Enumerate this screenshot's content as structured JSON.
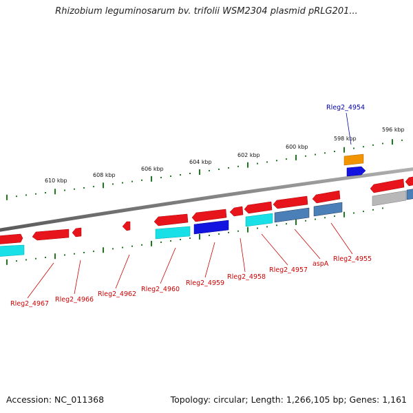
{
  "title": "Rhizobium leguminosarum bv. trifolii WSM2304 plasmid pRLG201...",
  "footer": {
    "accession": "Accession: NC_011368",
    "topology": "Topology: circular; Length: 1,266,105 bp; Genes: 1,161"
  },
  "colors": {
    "backbone": "#7f7f7f",
    "tick": "#1a7a1a",
    "label_red": "#cc0000",
    "label_blue": "#0000aa",
    "red": "#e8141b",
    "cyan": "#19e0e6",
    "blue": "#1414e0",
    "steelblue": "#4a7fb8",
    "orange": "#f29400",
    "gray": "#b8b8b8"
  },
  "scale_labels": [
    "610 kbp",
    "608 kbp",
    "606 kbp",
    "604 kbp",
    "602 kbp",
    "600 kbp",
    "598 kbp",
    "596 kbp"
  ],
  "gene_labels": [
    {
      "text": "Rleg2_4954",
      "color": "blue"
    },
    {
      "text": "Rleg2_4967",
      "color": "red"
    },
    {
      "text": "Rleg2_4966",
      "color": "red"
    },
    {
      "text": "Rleg2_4962",
      "color": "red"
    },
    {
      "text": "Rleg2_4960",
      "color": "red"
    },
    {
      "text": "Rleg2_4959",
      "color": "red"
    },
    {
      "text": "Rleg2_4958",
      "color": "red"
    },
    {
      "text": "Rleg2_4957",
      "color": "red"
    },
    {
      "text": "aspA",
      "color": "red"
    },
    {
      "text": "Rleg2_4955",
      "color": "red"
    }
  ]
}
